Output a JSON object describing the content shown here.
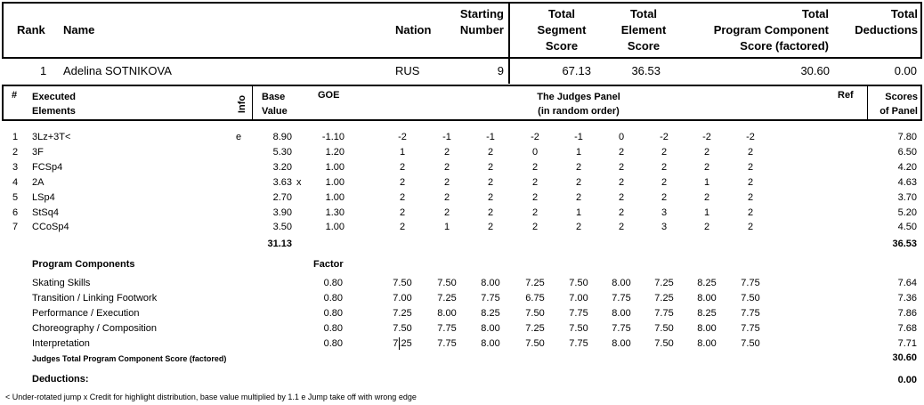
{
  "summary": {
    "headers": {
      "rank": "Rank",
      "name": "Name",
      "nation": "Nation",
      "starting_number": [
        "Starting",
        "Number"
      ],
      "tss": [
        "Total",
        "Segment",
        "Score"
      ],
      "tes": [
        "Total",
        "Element",
        "Score"
      ],
      "pcs": [
        "Total",
        "Program  Component",
        "Score (factored)"
      ],
      "deductions": [
        "Total",
        "Deductions"
      ]
    },
    "skater": {
      "rank": "1",
      "name": "Adelina SOTNIKOVA",
      "nation": "RUS",
      "starting_number": "9",
      "tss": "67.13",
      "tes": "36.53",
      "pcs": "30.60",
      "deductions": "0.00"
    }
  },
  "elements_header": {
    "num": "#",
    "executed": [
      "Executed",
      "Elements"
    ],
    "info": "Info",
    "base": [
      "Base",
      "Value"
    ],
    "goe": "GOE",
    "panel": [
      "The Judges Panel",
      "(in random order)"
    ],
    "ref": "Ref",
    "scores": [
      "Scores",
      "of Panel"
    ]
  },
  "elements": [
    {
      "num": "1",
      "name": "3Lz+3T<",
      "info": "e",
      "base": "8.90",
      "x": "",
      "goe": "-1.10",
      "judges": [
        "-2",
        "-1",
        "-1",
        "-2",
        "-1",
        "0",
        "-2",
        "-2",
        "-2"
      ],
      "score": "7.80"
    },
    {
      "num": "2",
      "name": "3F",
      "info": "",
      "base": "5.30",
      "x": "",
      "goe": "1.20",
      "judges": [
        "1",
        "2",
        "2",
        "0",
        "1",
        "2",
        "2",
        "2",
        "2"
      ],
      "score": "6.50"
    },
    {
      "num": "3",
      "name": "FCSp4",
      "info": "",
      "base": "3.20",
      "x": "",
      "goe": "1.00",
      "judges": [
        "2",
        "2",
        "2",
        "2",
        "2",
        "2",
        "2",
        "2",
        "2"
      ],
      "score": "4.20"
    },
    {
      "num": "4",
      "name": "2A",
      "info": "",
      "base": "3.63",
      "x": "x",
      "goe": "1.00",
      "judges": [
        "2",
        "2",
        "2",
        "2",
        "2",
        "2",
        "2",
        "1",
        "2"
      ],
      "score": "4.63"
    },
    {
      "num": "5",
      "name": "LSp4",
      "info": "",
      "base": "2.70",
      "x": "",
      "goe": "1.00",
      "judges": [
        "2",
        "2",
        "2",
        "2",
        "2",
        "2",
        "2",
        "2",
        "2"
      ],
      "score": "3.70"
    },
    {
      "num": "6",
      "name": "StSq4",
      "info": "",
      "base": "3.90",
      "x": "",
      "goe": "1.30",
      "judges": [
        "2",
        "2",
        "2",
        "2",
        "1",
        "2",
        "3",
        "1",
        "2"
      ],
      "score": "5.20"
    },
    {
      "num": "7",
      "name": "CCoSp4",
      "info": "",
      "base": "3.50",
      "x": "",
      "goe": "1.00",
      "judges": [
        "2",
        "1",
        "2",
        "2",
        "2",
        "2",
        "3",
        "2",
        "2"
      ],
      "score": "4.50"
    }
  ],
  "elements_total": {
    "base": "31.13",
    "score": "36.53"
  },
  "components_header": {
    "label": "Program Components",
    "factor": "Factor"
  },
  "components": [
    {
      "name": "Skating Skills",
      "factor": "0.80",
      "judges": [
        "7.50",
        "7.50",
        "8.00",
        "7.25",
        "7.50",
        "8.00",
        "7.25",
        "8.25",
        "7.75"
      ],
      "score": "7.64"
    },
    {
      "name": "Transition / Linking Footwork",
      "factor": "0.80",
      "judges": [
        "7.00",
        "7.25",
        "7.75",
        "6.75",
        "7.00",
        "7.75",
        "7.25",
        "8.00",
        "7.50"
      ],
      "score": "7.36"
    },
    {
      "name": "Performance / Execution",
      "factor": "0.80",
      "judges": [
        "7.25",
        "8.00",
        "8.25",
        "7.50",
        "7.75",
        "8.00",
        "7.75",
        "8.25",
        "7.75"
      ],
      "score": "7.86"
    },
    {
      "name": "Choreography / Composition",
      "factor": "0.80",
      "judges": [
        "7.50",
        "7.75",
        "8.00",
        "7.25",
        "7.50",
        "7.75",
        "7.50",
        "8.00",
        "7.75"
      ],
      "score": "7.68"
    },
    {
      "name": "Interpretation",
      "factor": "0.80",
      "judges": [
        "7.25",
        "7.75",
        "8.00",
        "7.50",
        "7.75",
        "8.00",
        "7.50",
        "8.00",
        "7.50"
      ],
      "score": "7.71"
    }
  ],
  "components_total": {
    "label": "Judges Total Program Component Score (factored)",
    "score": "30.60"
  },
  "deductions": {
    "label": "Deductions:",
    "score": "0.00"
  },
  "legend": "<  Under-rotated jump   x  Credit for highlight distribution, base value multiplied by 1.1   e  Jump take off with wrong edge"
}
